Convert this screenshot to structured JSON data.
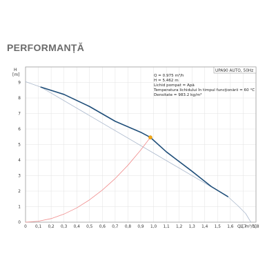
{
  "page": {
    "title": "PERFORMANȚĂ"
  },
  "chart_data": {
    "type": "line",
    "ylabel": "H",
    "yunit": "[m]",
    "xlabel": "Q",
    "xunit": "[ m³/h]",
    "xlim": [
      0,
      1.8
    ],
    "ylim": [
      0,
      10
    ],
    "xticks": [
      "0",
      "0,1",
      "0,2",
      "0,3",
      "0,4",
      "0,5",
      "0,6",
      "0,7",
      "0,8",
      "0,9",
      "1,0",
      "1,1",
      "1,2",
      "1,3",
      "1,4",
      "1,5",
      "1,6",
      "1,7",
      "1,8"
    ],
    "yticks": [
      "0",
      "1",
      "2",
      "3",
      "4",
      "5",
      "6",
      "7",
      "8",
      "9"
    ],
    "grid": true,
    "series": [
      {
        "role": "pump-curve",
        "color": "#1f4e79",
        "x": [
          0.12,
          0.3,
          0.5,
          0.7,
          0.9,
          0.975,
          1.1,
          1.3,
          1.45,
          1.58
        ],
        "y": [
          8.7,
          8.23,
          7.45,
          6.5,
          5.79,
          5.462,
          4.53,
          3.28,
          2.3,
          1.65
        ]
      },
      {
        "role": "pump-curve-extension",
        "color": "#aab8cc",
        "x": [
          0,
          0.12,
          1.58,
          1.66,
          1.72,
          1.76
        ],
        "y": [
          9.05,
          8.7,
          1.65,
          1.05,
          0.55,
          0.0
        ]
      },
      {
        "role": "system-curve",
        "color": "#f08a8a",
        "x": [
          0,
          0.1,
          0.2,
          0.3,
          0.4,
          0.5,
          0.6,
          0.7,
          0.8,
          0.9,
          0.975
        ],
        "y": [
          0,
          0.06,
          0.23,
          0.52,
          0.92,
          1.44,
          2.07,
          2.81,
          3.67,
          4.65,
          5.462
        ]
      }
    ],
    "operating_point": {
      "x": 0.975,
      "y": 5.462,
      "color": "#f2a818"
    },
    "legend_box": "UPA90 AUTO, 50Hz",
    "annotations": [
      "Q = 0.975  m³/h",
      "H = 5.462 m",
      "Lichid pompat = Apă",
      " Temperatura lichidului în timpul funcţionării = 60  °C",
      "Densitate = 983.2  kg/m³"
    ]
  }
}
